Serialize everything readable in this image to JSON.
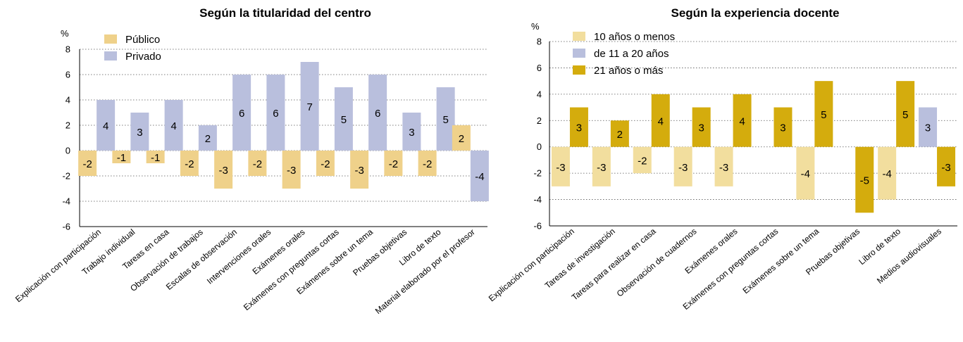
{
  "colors": {
    "publico": "#efd18a",
    "privado": "#b9bfdd",
    "exp_low": "#f2de9e",
    "exp_mid": "#b9bfdd",
    "exp_high": "#d4ac0d"
  },
  "chart_data": [
    {
      "type": "bar",
      "title": "Según la titularidad del centro",
      "ylabel": "%",
      "ylim": [
        -6,
        8
      ],
      "yticks": [
        8,
        6,
        4,
        2,
        0,
        -2,
        -4,
        -6
      ],
      "grid": true,
      "legend_position": "top-left",
      "categories": [
        "Explicación con participación",
        "Trabajo individual",
        "Tareas en casa",
        "Observación de trabajos",
        "Escalas de observación",
        "Intervenciones orales",
        "Exámenes orales",
        "Exámenes con preguntas cortas",
        "Exámenes sobre un tema",
        "Pruebas objetivas",
        "Libro de texto",
        "Material elaborado por el profesor"
      ],
      "series": [
        {
          "name": "Público",
          "color_key": "publico",
          "values": [
            -2,
            -1,
            -1,
            -2,
            -3,
            -2,
            -3,
            -2,
            -3,
            -2,
            -2,
            2
          ]
        },
        {
          "name": "Privado",
          "color_key": "privado",
          "values": [
            4,
            3,
            4,
            2,
            6,
            6,
            7,
            5,
            6,
            3,
            5,
            -4
          ]
        }
      ]
    },
    {
      "type": "bar",
      "title": "Según la experiencia docente",
      "ylabel": "%",
      "ylim": [
        -6,
        8
      ],
      "yticks": [
        8,
        6,
        4,
        2,
        0,
        -2,
        -4,
        -6
      ],
      "grid": true,
      "legend_position": "top-left",
      "categories": [
        "Explicación con participación",
        "Tareas de investigación",
        "Tareas para realizar en casa",
        "Observación de cuadernos",
        "Exámenes orales",
        "Exámenes con preguntas cortas",
        "Exámenes sobre un tema",
        "Pruebas objetivas",
        "Libro de texto",
        "Medios audiovisuales"
      ],
      "series": [
        {
          "name": "10 años o menos",
          "color_key": "exp_low",
          "values": [
            -3,
            -3,
            -2,
            -3,
            -3,
            null,
            -4,
            null,
            -4,
            null
          ]
        },
        {
          "name": "de 11 a 20 años",
          "color_key": "exp_mid",
          "values": [
            null,
            null,
            null,
            null,
            null,
            null,
            null,
            null,
            null,
            3
          ]
        },
        {
          "name": "21 años o más",
          "color_key": "exp_high",
          "values": [
            3,
            2,
            4,
            3,
            4,
            3,
            5,
            -5,
            5,
            -3
          ]
        }
      ]
    }
  ]
}
